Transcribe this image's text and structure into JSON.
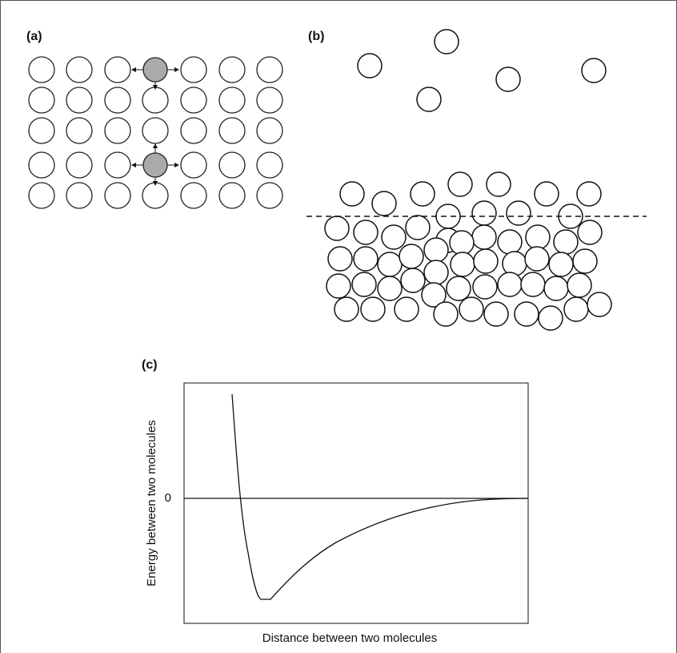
{
  "panels": {
    "a": {
      "label": "(a)"
    },
    "b": {
      "label": "(b)"
    },
    "c": {
      "label": "(c)",
      "y_tick": "0",
      "y_axis_label": "Energy between two molecules",
      "x_axis_label": "Distance between two molecules"
    }
  }
}
